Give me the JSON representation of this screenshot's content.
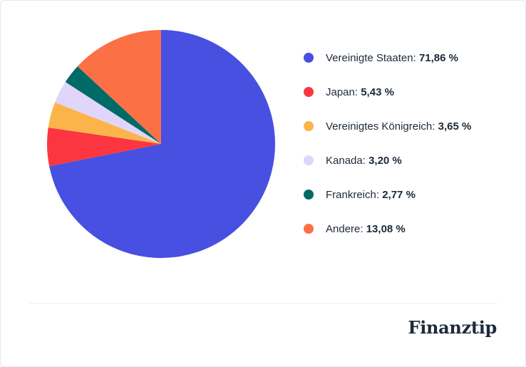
{
  "chart_data": {
    "type": "pie",
    "slices": [
      {
        "label": "Vereinigte Staaten",
        "value": 71.86,
        "value_text": "71,86 %",
        "color": "#4750e0"
      },
      {
        "label": "Japan",
        "value": 5.43,
        "value_text": "5,43 %",
        "color": "#fb3640"
      },
      {
        "label": "Vereinigtes Königreich",
        "value": 3.65,
        "value_text": "3,65 %",
        "color": "#fbb44a"
      },
      {
        "label": "Kanada",
        "value": 3.2,
        "value_text": "3,20 %",
        "color": "#e0d5fa"
      },
      {
        "label": "Frankreich",
        "value": 2.77,
        "value_text": "2,77 %",
        "color": "#006a67"
      },
      {
        "label": "Andere",
        "value": 13.08,
        "value_text": "13,08 %",
        "color": "#fb7044"
      }
    ],
    "start_angle": "12 o'clock",
    "direction": "clockwise",
    "legend_position": "right"
  },
  "brand": {
    "name": "Finanztip"
  }
}
